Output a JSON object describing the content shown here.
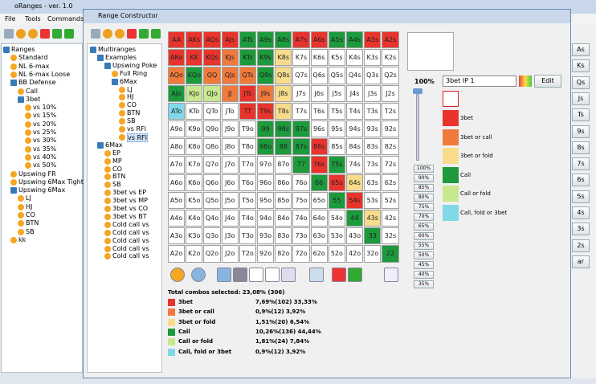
{
  "main_window": {
    "title": "oRanges - ver. 1.0",
    "menu": [
      "File",
      "Tools",
      "Commands"
    ],
    "tree": [
      {
        "label": "Ranges",
        "children": [
          {
            "label": "Standard"
          },
          {
            "label": "NL 6-max"
          },
          {
            "label": "NL 6-max Loose"
          },
          {
            "label": "BB Defense",
            "children": [
              {
                "label": "Call"
              },
              {
                "label": "3bet",
                "children": [
                  {
                    "label": "vs 10%"
                  },
                  {
                    "label": "vs 15%"
                  },
                  {
                    "label": "vs 20%"
                  },
                  {
                    "label": "vs 25%"
                  },
                  {
                    "label": "vs 30%"
                  },
                  {
                    "label": "vs 35%"
                  },
                  {
                    "label": "vs 40%"
                  },
                  {
                    "label": "vs 50%"
                  }
                ]
              }
            ]
          },
          {
            "label": "Upswing FR"
          },
          {
            "label": "Upswing 6Max Tight"
          },
          {
            "label": "Upswing 6Max",
            "children": [
              {
                "label": "LJ"
              },
              {
                "label": "HJ"
              },
              {
                "label": "CO"
              },
              {
                "label": "BTN"
              },
              {
                "label": "SB"
              }
            ]
          },
          {
            "label": "kk"
          }
        ]
      }
    ],
    "side_buttons": [
      "As",
      "Ks",
      "Qs",
      "Js",
      "Ts",
      "9s",
      "8s",
      "7s",
      "6s",
      "5s",
      "4s",
      "3s",
      "2s",
      "ar"
    ]
  },
  "constructor": {
    "title": "Range Constructor",
    "tree": [
      {
        "label": "Multiranges",
        "children": [
          {
            "label": "Examples",
            "children": [
              {
                "label": "Upswing Poke",
                "children": [
                  {
                    "label": "Full Ring"
                  },
                  {
                    "label": "6Max",
                    "children": [
                      {
                        "label": "LJ"
                      },
                      {
                        "label": "HJ"
                      },
                      {
                        "label": "CO"
                      },
                      {
                        "label": "BTN"
                      },
                      {
                        "label": "SB"
                      },
                      {
                        "label": "vs RFI"
                      },
                      {
                        "label": "vs RFI",
                        "selected": true
                      }
                    ]
                  }
                ]
              }
            ]
          },
          {
            "label": "6Max",
            "children": [
              {
                "label": "EP"
              },
              {
                "label": "MP"
              },
              {
                "label": "CO"
              },
              {
                "label": "BTN"
              },
              {
                "label": "SB"
              },
              {
                "label": "3bet vs EP"
              },
              {
                "label": "3bet vs MP"
              },
              {
                "label": "3bet vs CO"
              },
              {
                "label": "3bet vs BT"
              },
              {
                "label": "Cold call vs"
              },
              {
                "label": "Cold call vs"
              },
              {
                "label": "Cold call vs"
              },
              {
                "label": "Cold call vs"
              },
              {
                "label": "Cold call vs"
              }
            ]
          }
        ]
      }
    ],
    "grid": [
      [
        "AA",
        "AKs",
        "AQs",
        "AJs",
        "ATs",
        "A9s",
        "A8s",
        "A7s",
        "A6s",
        "A5s",
        "A4s",
        "A3s",
        "A2s"
      ],
      [
        "AKo",
        "KK",
        "KQs",
        "KJs",
        "KTs",
        "K9s",
        "K8s",
        "K7s",
        "K6s",
        "K5s",
        "K4s",
        "K3s",
        "K2s"
      ],
      [
        "AQo",
        "KQo",
        "QQ",
        "QJs",
        "QTs",
        "Q9s",
        "Q8s",
        "Q7s",
        "Q6s",
        "Q5s",
        "Q4s",
        "Q3s",
        "Q2s"
      ],
      [
        "AJo",
        "KJo",
        "QJo",
        "JJ",
        "JTs",
        "J9s",
        "J8s",
        "J7s",
        "J6s",
        "J5s",
        "J4s",
        "J3s",
        "J2s"
      ],
      [
        "ATo",
        "KTo",
        "QTo",
        "JTo",
        "TT",
        "T9s",
        "T8s",
        "T7s",
        "T6s",
        "T5s",
        "T4s",
        "T3s",
        "T2s"
      ],
      [
        "A9o",
        "K9o",
        "Q9o",
        "J9o",
        "T9o",
        "99",
        "98s",
        "97s",
        "96s",
        "95s",
        "94s",
        "93s",
        "92s"
      ],
      [
        "A8o",
        "K8o",
        "Q8o",
        "J8o",
        "T8o",
        "98o",
        "88",
        "87s",
        "86s",
        "85s",
        "84s",
        "83s",
        "82s"
      ],
      [
        "A7o",
        "K7o",
        "Q7o",
        "J7o",
        "T7o",
        "97o",
        "87o",
        "77",
        "76s",
        "75s",
        "74s",
        "73s",
        "72s"
      ],
      [
        "A6o",
        "K6o",
        "Q6o",
        "J6o",
        "T6o",
        "96o",
        "86o",
        "76o",
        "66",
        "65s",
        "64s",
        "63s",
        "62s"
      ],
      [
        "A5o",
        "K5o",
        "Q5o",
        "J5o",
        "T5o",
        "95o",
        "85o",
        "75o",
        "65o",
        "55",
        "54s",
        "53s",
        "52s"
      ],
      [
        "A4o",
        "K4o",
        "Q4o",
        "J4o",
        "T4o",
        "94o",
        "84o",
        "74o",
        "64o",
        "54o",
        "44",
        "43s",
        "42s"
      ],
      [
        "A3o",
        "K3o",
        "Q3o",
        "J3o",
        "T3o",
        "93o",
        "83o",
        "73o",
        "63o",
        "53o",
        "43o",
        "33",
        "32s"
      ],
      [
        "A2o",
        "K2o",
        "Q2o",
        "J2o",
        "T2o",
        "92o",
        "82o",
        "72o",
        "62o",
        "52o",
        "42o",
        "32o",
        "22"
      ]
    ],
    "grid_actions": [
      [
        0,
        0,
        0,
        0,
        3,
        3,
        3,
        0,
        0,
        3,
        3,
        0,
        0
      ],
      [
        0,
        0,
        0,
        1,
        3,
        3,
        2,
        null,
        null,
        null,
        null,
        null,
        null
      ],
      [
        1,
        3,
        1,
        1,
        1,
        3,
        2,
        null,
        null,
        null,
        null,
        null,
        null
      ],
      [
        3,
        4,
        4,
        1,
        0,
        1,
        2,
        null,
        null,
        null,
        null,
        null,
        null
      ],
      [
        5,
        null,
        null,
        null,
        0,
        0,
        2,
        null,
        null,
        null,
        null,
        null,
        null
      ],
      [
        null,
        null,
        null,
        null,
        null,
        3,
        3,
        3,
        null,
        null,
        null,
        null,
        null
      ],
      [
        null,
        null,
        null,
        null,
        null,
        3,
        3,
        3,
        0,
        null,
        null,
        null,
        null
      ],
      [
        null,
        null,
        null,
        null,
        null,
        null,
        null,
        3,
        0,
        3,
        null,
        null,
        null
      ],
      [
        null,
        null,
        null,
        null,
        null,
        null,
        null,
        null,
        3,
        0,
        2,
        null,
        null
      ],
      [
        null,
        null,
        null,
        null,
        null,
        null,
        null,
        null,
        null,
        3,
        0,
        null,
        null
      ],
      [
        null,
        null,
        null,
        null,
        null,
        null,
        null,
        null,
        null,
        null,
        3,
        2,
        null
      ],
      [
        null,
        null,
        null,
        null,
        null,
        null,
        null,
        null,
        null,
        null,
        null,
        3,
        null
      ],
      [
        null,
        null,
        null,
        null,
        null,
        null,
        null,
        null,
        null,
        null,
        null,
        null,
        3
      ]
    ],
    "slider_label": "100%",
    "percent_buttons": [
      "100%",
      "90%",
      "85%",
      "80%",
      "75%",
      "70%",
      "65%",
      "60%",
      "55%",
      "50%",
      "45%",
      "40%",
      "35%"
    ],
    "dropdown": "3bet IP 1",
    "edit_button": "Edit",
    "legend": [
      {
        "label": "3bet",
        "color": "#e8342c"
      },
      {
        "label": "3bet or call",
        "color": "#f07a3c"
      },
      {
        "label": "3bet or fold",
        "color": "#f8dc8c"
      },
      {
        "label": "Call",
        "color": "#1c9a3c"
      },
      {
        "label": "Call or fold",
        "color": "#c8e890"
      },
      {
        "label": "Call, fold or 3bet",
        "color": "#80d8e8"
      }
    ],
    "total": "Total combos selected: 23,08% (306)",
    "stats": [
      "7,69%(102) 33,33%",
      "0,9%(12) 3,92%",
      "1,51%(20) 6,54%",
      "10,26%(136) 44,44%",
      "1,81%(24) 7,84%",
      "0,9%(12) 3,92%"
    ]
  }
}
